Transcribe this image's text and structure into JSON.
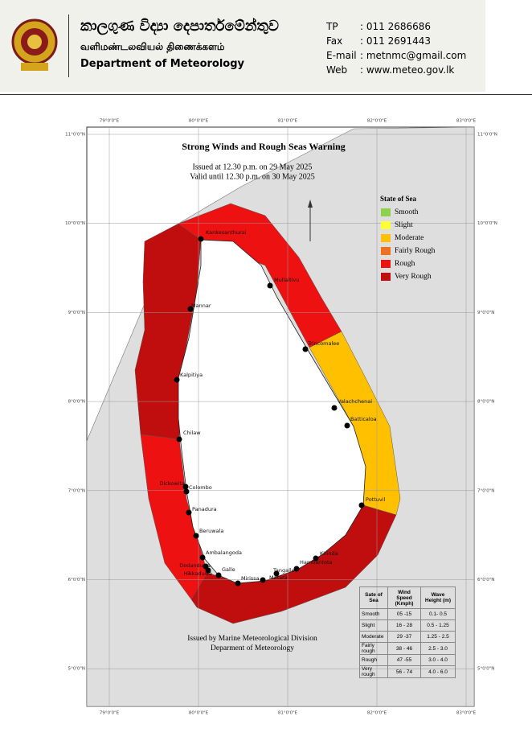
{
  "header": {
    "sinhala": "කාලගුණ විද්‍යා දෙපාර්තමේන්තුව",
    "tamil": "வளிமண்டலவியல் திணைக்களம்",
    "english": "Department of Meteorology",
    "contacts": [
      {
        "key": "TP",
        "value": ": 011 2686686"
      },
      {
        "key": "Fax",
        "value": ": 011 2691443"
      },
      {
        "key": "E-mail",
        "value": ": metnmc@gmail.com"
      },
      {
        "key": "Web",
        "value": ": www.meteo.gov.lk"
      }
    ]
  },
  "map": {
    "title": "Strong Winds and Rough Seas Warning",
    "issued": "Issued at 12.30 p.m. on 29 May 2025",
    "valid": "Valid until 12.30 p.m. on 30 May 2025",
    "lon_ticks": [
      {
        "value": 79,
        "label": "79°0'0\"E"
      },
      {
        "value": 80,
        "label": "80°0'0\"E"
      },
      {
        "value": 81,
        "label": "81°0'0\"E"
      },
      {
        "value": 82,
        "label": "82°0'0\"E"
      },
      {
        "value": 83,
        "label": "83°0'0\"E"
      }
    ],
    "lat_ticks": [
      {
        "value": 11,
        "label": "11°0'0\"N"
      },
      {
        "value": 10,
        "label": "10°0'0\"N"
      },
      {
        "value": 9,
        "label": "9°0'0\"N"
      },
      {
        "value": 8,
        "label": "8°0'0\"N"
      },
      {
        "value": 7,
        "label": "7°0'0\"N"
      },
      {
        "value": 6,
        "label": "6°0'0\"N"
      },
      {
        "value": 5,
        "label": "5°0'0\"N"
      }
    ],
    "legend": {
      "title": "State of Sea",
      "items": [
        {
          "name": "Smooth",
          "color": "#8fd14f"
        },
        {
          "name": "Slight",
          "color": "#ffff33"
        },
        {
          "name": "Moderate",
          "color": "#ffc000"
        },
        {
          "name": "Fairly Rough",
          "color": "#f07020"
        },
        {
          "name": "Rough",
          "color": "#ee1111"
        },
        {
          "name": "Very Rough",
          "color": "#c00e0e"
        }
      ]
    },
    "places": [
      "Kankesanthurai",
      "Mullaitivu",
      "Trincomalee",
      "Valachchenai",
      "Batticaloa",
      "Pottuvil",
      "Kirinda",
      "Hambantota",
      "Tangalle",
      "Matara",
      "Mirissa",
      "Galle",
      "Hikkaduwa",
      "Dodanduwa",
      "Ambalangoda",
      "Beruwala",
      "Panadura",
      "Colombo",
      "Dickowita",
      "Chilaw",
      "Kalpitiya",
      "Mannar"
    ],
    "footer": [
      "Issued by Marine Meteorological Division",
      "Deparment of Meteorology"
    ]
  },
  "table": {
    "header": [
      "Sate of Sea",
      "Wind Speed (Kmph)",
      "Wave Height (m)"
    ],
    "rows": [
      [
        "Smooth",
        "05 -15",
        "0.1- 0.5"
      ],
      [
        "Slight",
        "16 - 28",
        "0.5 - 1.25"
      ],
      [
        "Moderate",
        "29 -37",
        "1.25 - 2.5"
      ],
      [
        "Fairly rough",
        "38 - 46",
        "2.5 - 3.0"
      ],
      [
        "Rough",
        "47 -55",
        "3.0 - 4.0"
      ],
      [
        "Very rough",
        "56 - 74",
        "4.0 - 6.0"
      ]
    ]
  }
}
